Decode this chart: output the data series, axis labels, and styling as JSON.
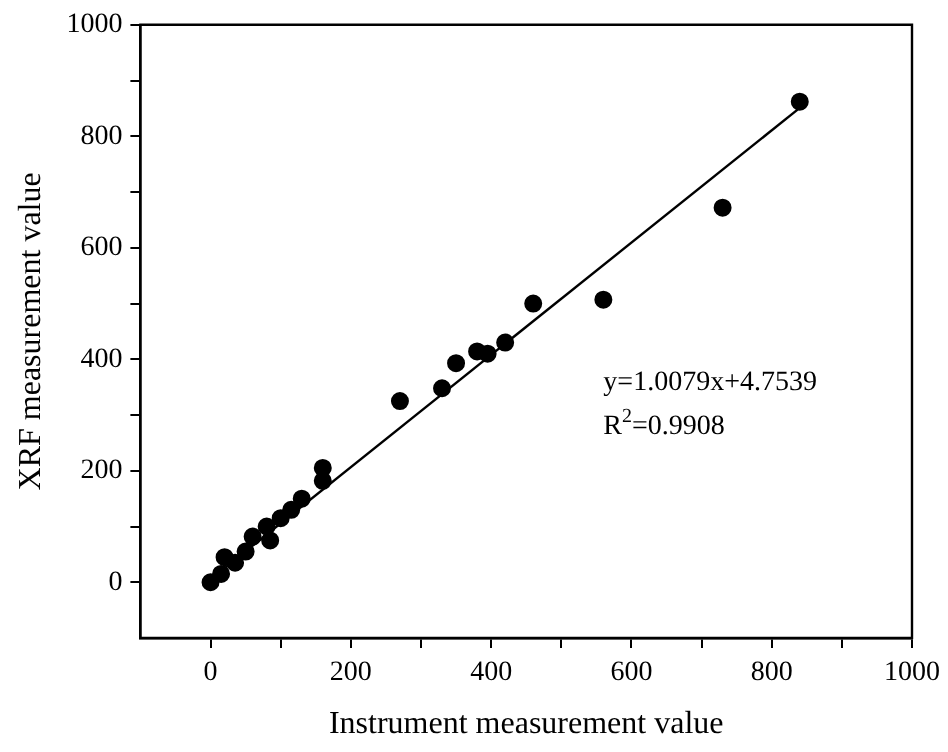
{
  "chart_data": {
    "type": "scatter",
    "xlabel": "Instrument measurement value",
    "ylabel": "XRF measurement value",
    "xlim": [
      -100,
      1000
    ],
    "ylim": [
      -100,
      1000
    ],
    "xticks": [
      0,
      {
        "value": 100,
        "label": null
      },
      200,
      {
        "value": 300,
        "label": null
      },
      400,
      {
        "value": 500,
        "label": null
      },
      600,
      {
        "value": 700,
        "label": null
      },
      800,
      {
        "value": 900,
        "label": null
      },
      1000
    ],
    "yticks": [
      0,
      {
        "value": 100,
        "label": null
      },
      200,
      {
        "value": 300,
        "label": null
      },
      400,
      {
        "value": 500,
        "label": null
      },
      600,
      {
        "value": 700,
        "label": null
      },
      800,
      {
        "value": 900,
        "label": null
      },
      1000
    ],
    "grid": false,
    "legend": false,
    "annotations": [
      "y=1.0079x+4.7539",
      "R$^{2}$=0.9908"
    ],
    "series": [
      {
        "marker": "circle",
        "color": "#000000",
        "x": [
          840,
          730,
          560,
          460,
          420,
          395,
          380,
          350,
          330,
          270,
          160,
          160,
          130,
          115,
          100,
          80,
          85,
          60,
          50,
          35,
          20,
          15,
          0
        ],
        "values": [
          862,
          672,
          507,
          500,
          430,
          410,
          414,
          393,
          348,
          325,
          205,
          182,
          150,
          130,
          115,
          100,
          75,
          82,
          55,
          35,
          45,
          15,
          0
        ]
      },
      {
        "type": "line",
        "marker": "none",
        "color": "#000000",
        "x": [
          0,
          840
        ],
        "values": [
          5,
          851
        ]
      }
    ]
  }
}
